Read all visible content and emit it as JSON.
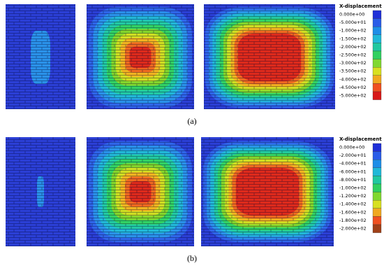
{
  "panels": [
    {
      "legend": {
        "title": "X-displacement",
        "labels": [
          "0.000e+00",
          "-5.000e+01",
          "-1.000e+02",
          "-1.500e+02",
          "-2.000e+02",
          "-2.500e+02",
          "-3.000e+02",
          "-3.500e+02",
          "-4.000e+02",
          "-4.500e+02",
          "-5.000e+02"
        ]
      },
      "caption": "(a)"
    },
    {
      "legend": {
        "title": "X-displacement",
        "labels": [
          "0.000e+00",
          "-2.000e+01",
          "-4.000e+01",
          "-6.000e+01",
          "-8.000e+01",
          "-1.000e+02",
          "-1.200e+02",
          "-1.400e+02",
          "-1.600e+02",
          "-1.800e+02",
          "-2.000e+02"
        ]
      },
      "caption": "(b)"
    }
  ]
}
